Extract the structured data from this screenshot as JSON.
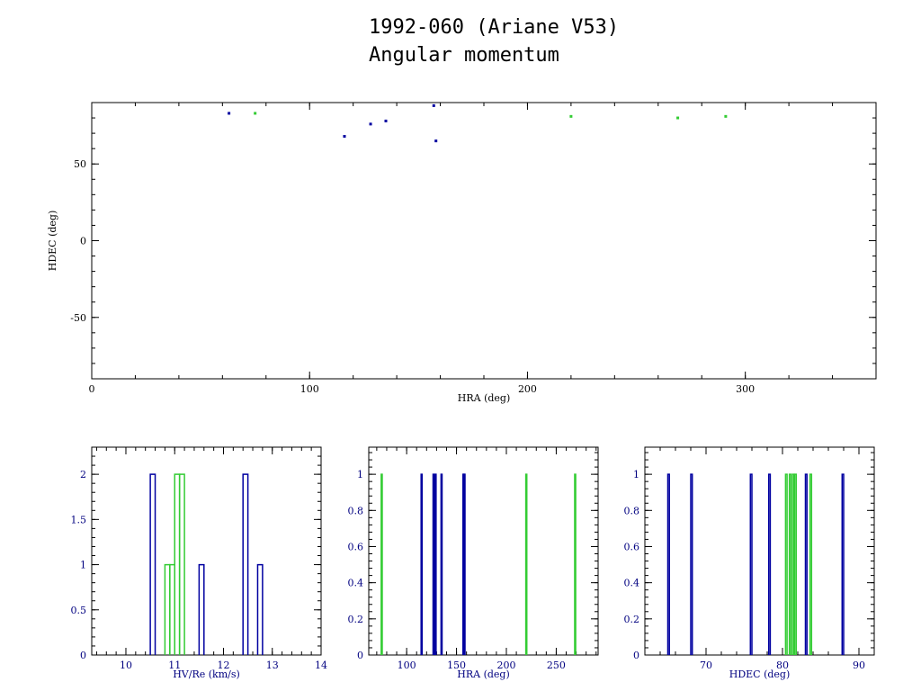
{
  "title_line1": "1992-060 (Ariane V53)",
  "title_line2": "Angular momentum",
  "colors": {
    "blue": "#0000a0",
    "green": "#33cc33",
    "axis": "#000000",
    "label": "#000080"
  },
  "chart_data": [
    {
      "type": "scatter",
      "xlabel": "HRA (deg)",
      "ylabel": "HDEC (deg)",
      "xlim": [
        0,
        360
      ],
      "ylim": [
        -90,
        90
      ],
      "xticks": [
        0,
        100,
        200,
        300
      ],
      "yticks": [
        -50,
        0,
        50
      ],
      "series": [
        {
          "color": "blue",
          "points": [
            [
              63,
              83
            ],
            [
              116,
              68
            ],
            [
              128,
              76
            ],
            [
              135,
              78
            ],
            [
              158,
              65
            ],
            [
              157,
              88
            ]
          ]
        },
        {
          "color": "green",
          "points": [
            [
              75,
              83
            ],
            [
              220,
              81
            ],
            [
              269,
              80
            ],
            [
              291,
              81
            ]
          ]
        }
      ]
    },
    {
      "type": "bar",
      "subtype": "histogram",
      "xlabel": "HV/Re (km/s)",
      "ylabel": "",
      "xlim": [
        9.3,
        14
      ],
      "ylim": [
        0,
        2.3
      ],
      "xticks": [
        10,
        11,
        12,
        13,
        14
      ],
      "yticks": [
        0,
        0.5,
        1,
        1.5,
        2
      ],
      "yticklabels": [
        "0",
        "0.5",
        "1",
        "1.5",
        "2"
      ],
      "series": [
        {
          "color": "blue",
          "bins": [
            [
              10.5,
              10.6,
              2
            ],
            [
              11.5,
              11.6,
              1
            ],
            [
              12.4,
              12.5,
              2
            ],
            [
              12.7,
              12.8,
              1
            ]
          ]
        },
        {
          "color": "green",
          "bins": [
            [
              10.8,
              10.9,
              1
            ],
            [
              10.9,
              11.0,
              1
            ],
            [
              11.0,
              11.1,
              2
            ],
            [
              11.1,
              11.2,
              2
            ]
          ]
        }
      ]
    },
    {
      "type": "bar",
      "subtype": "histogram",
      "xlabel": "HRA (deg)",
      "ylabel": "",
      "xlim": [
        62,
        292
      ],
      "ylim": [
        0,
        1.15
      ],
      "xticks": [
        100,
        150,
        200,
        250
      ],
      "yticks": [
        0,
        0.2,
        0.4,
        0.6,
        0.8,
        1
      ],
      "yticklabels": [
        "0",
        "0.2",
        "0.4",
        "0.6",
        "0.8",
        "1"
      ],
      "series": [
        {
          "color": "blue",
          "bins": [
            [
              114.5,
              115.5,
              1
            ],
            [
              126.5,
              127.5,
              1
            ],
            [
              128.5,
              129.5,
              1
            ],
            [
              134.5,
              135.5,
              1
            ],
            [
              156.5,
              157.5,
              1
            ],
            [
              157.5,
              158.5,
              1
            ]
          ]
        },
        {
          "color": "green",
          "bins": [
            [
              74.5,
              75.5,
              1
            ],
            [
              219.5,
              220.5,
              1
            ],
            [
              268.5,
              269.5,
              1
            ]
          ]
        }
      ]
    },
    {
      "type": "bar",
      "subtype": "histogram",
      "xlabel": "HDEC (deg)",
      "ylabel": "",
      "xlim": [
        62,
        92
      ],
      "ylim": [
        0,
        1.15
      ],
      "xticks": [
        70,
        80,
        90
      ],
      "yticks": [
        0,
        0.2,
        0.4,
        0.6,
        0.8,
        1
      ],
      "yticklabels": [
        "0",
        "0.2",
        "0.4",
        "0.6",
        "0.8",
        "1"
      ],
      "series": [
        {
          "color": "blue",
          "bins": [
            [
              65.0,
              65.2,
              1
            ],
            [
              68.0,
              68.2,
              1
            ],
            [
              75.8,
              76.0,
              1
            ],
            [
              78.2,
              78.4,
              1
            ],
            [
              83.0,
              83.2,
              1
            ],
            [
              87.8,
              88.0,
              1
            ]
          ]
        },
        {
          "color": "green",
          "bins": [
            [
              80.4,
              80.6,
              1
            ],
            [
              80.9,
              81.1,
              1
            ],
            [
              81.3,
              81.5,
              1
            ],
            [
              81.6,
              81.8,
              1
            ],
            [
              83.6,
              83.8,
              1
            ]
          ]
        }
      ]
    }
  ]
}
